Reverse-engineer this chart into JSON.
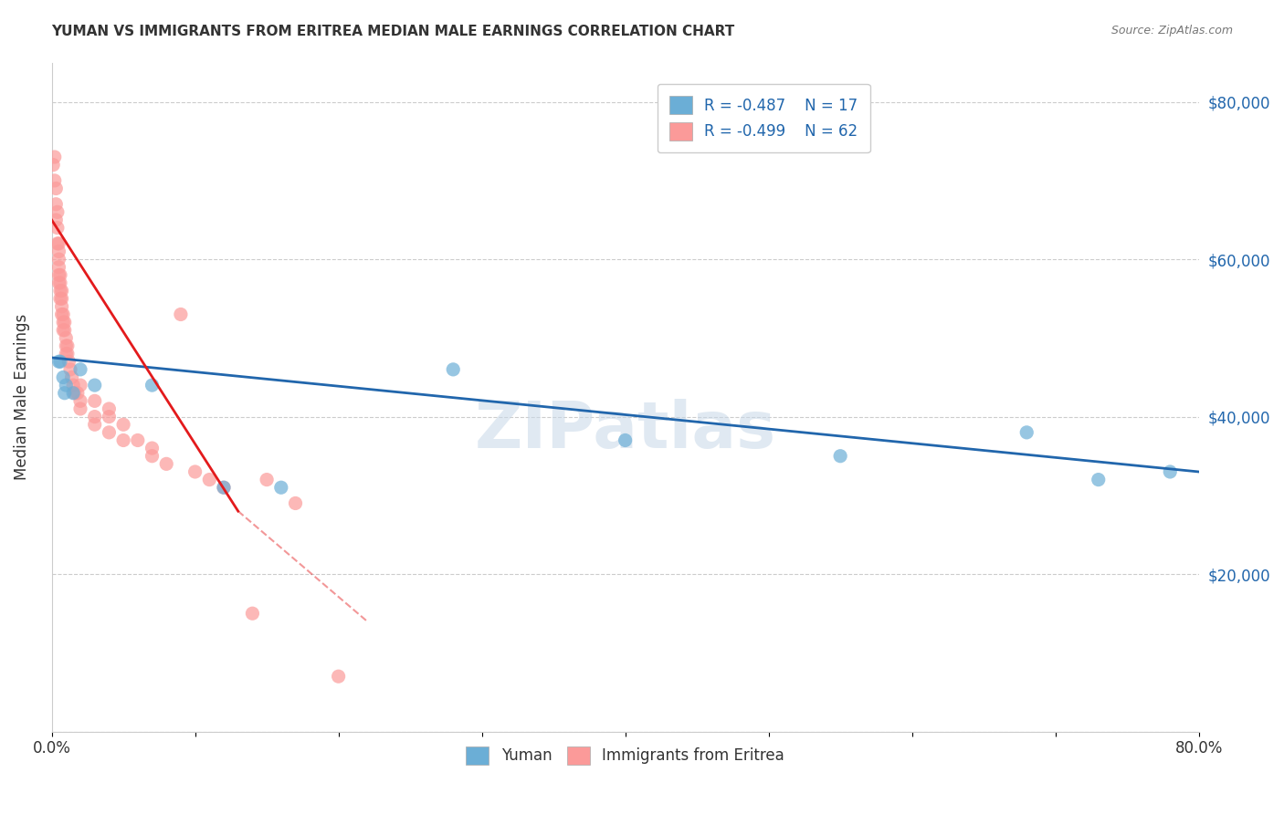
{
  "title": "YUMAN VS IMMIGRANTS FROM ERITREA MEDIAN MALE EARNINGS CORRELATION CHART",
  "source": "Source: ZipAtlas.com",
  "ylabel": "Median Male Earnings",
  "xmin": 0.0,
  "xmax": 0.8,
  "ymin": 0,
  "ymax": 85000,
  "watermark": "ZIPatlas",
  "legend_r1": "-0.487",
  "legend_n1": "17",
  "legend_r2": "-0.499",
  "legend_n2": "62",
  "blue_color": "#6baed6",
  "pink_color": "#fb9a99",
  "blue_line_color": "#2166ac",
  "pink_line_color": "#e31a1c",
  "blue_scatter": [
    [
      0.005,
      47000
    ],
    [
      0.006,
      47000
    ],
    [
      0.008,
      45000
    ],
    [
      0.009,
      43000
    ],
    [
      0.01,
      44000
    ],
    [
      0.015,
      43000
    ],
    [
      0.02,
      46000
    ],
    [
      0.03,
      44000
    ],
    [
      0.07,
      44000
    ],
    [
      0.12,
      31000
    ],
    [
      0.16,
      31000
    ],
    [
      0.28,
      46000
    ],
    [
      0.4,
      37000
    ],
    [
      0.55,
      35000
    ],
    [
      0.68,
      38000
    ],
    [
      0.73,
      32000
    ],
    [
      0.78,
      33000
    ]
  ],
  "pink_scatter": [
    [
      0.001,
      72000
    ],
    [
      0.002,
      73000
    ],
    [
      0.002,
      70000
    ],
    [
      0.003,
      69000
    ],
    [
      0.003,
      67000
    ],
    [
      0.003,
      65000
    ],
    [
      0.004,
      66000
    ],
    [
      0.004,
      64000
    ],
    [
      0.004,
      62000
    ],
    [
      0.005,
      62000
    ],
    [
      0.005,
      61000
    ],
    [
      0.005,
      60000
    ],
    [
      0.005,
      59000
    ],
    [
      0.005,
      58000
    ],
    [
      0.005,
      57000
    ],
    [
      0.006,
      58000
    ],
    [
      0.006,
      57000
    ],
    [
      0.006,
      56000
    ],
    [
      0.006,
      55000
    ],
    [
      0.007,
      56000
    ],
    [
      0.007,
      55000
    ],
    [
      0.007,
      54000
    ],
    [
      0.007,
      53000
    ],
    [
      0.008,
      53000
    ],
    [
      0.008,
      52000
    ],
    [
      0.008,
      51000
    ],
    [
      0.009,
      52000
    ],
    [
      0.009,
      51000
    ],
    [
      0.01,
      50000
    ],
    [
      0.01,
      49000
    ],
    [
      0.01,
      48000
    ],
    [
      0.011,
      49000
    ],
    [
      0.011,
      48000
    ],
    [
      0.012,
      47000
    ],
    [
      0.013,
      46000
    ],
    [
      0.014,
      45000
    ],
    [
      0.015,
      44000
    ],
    [
      0.016,
      43000
    ],
    [
      0.018,
      43000
    ],
    [
      0.02,
      44000
    ],
    [
      0.02,
      42000
    ],
    [
      0.02,
      41000
    ],
    [
      0.03,
      42000
    ],
    [
      0.03,
      40000
    ],
    [
      0.03,
      39000
    ],
    [
      0.04,
      41000
    ],
    [
      0.04,
      40000
    ],
    [
      0.04,
      38000
    ],
    [
      0.05,
      39000
    ],
    [
      0.05,
      37000
    ],
    [
      0.06,
      37000
    ],
    [
      0.07,
      36000
    ],
    [
      0.07,
      35000
    ],
    [
      0.08,
      34000
    ],
    [
      0.09,
      53000
    ],
    [
      0.1,
      33000
    ],
    [
      0.11,
      32000
    ],
    [
      0.12,
      31000
    ],
    [
      0.14,
      15000
    ],
    [
      0.15,
      32000
    ],
    [
      0.17,
      29000
    ],
    [
      0.2,
      7000
    ]
  ],
  "blue_trendline": [
    [
      0.0,
      47500
    ],
    [
      0.8,
      33000
    ]
  ],
  "pink_trendline_solid": [
    [
      0.0,
      65000
    ],
    [
      0.13,
      28000
    ]
  ],
  "pink_trendline_dash": [
    [
      0.13,
      28000
    ],
    [
      0.22,
      14000
    ]
  ]
}
